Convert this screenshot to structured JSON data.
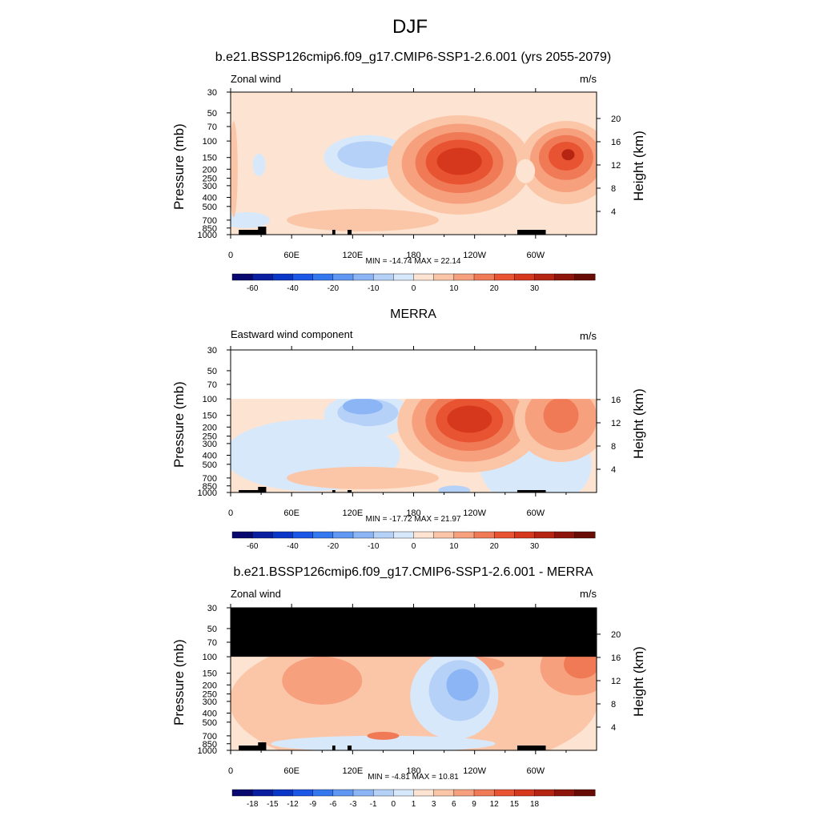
{
  "page": {
    "title": "DJF"
  },
  "panels": [
    {
      "id": "model",
      "title": "b.e21.BSSP126cmip6.f09_g17.CMIP6-SSP1-2.6.001 (yrs 2055-2079)",
      "left_label": "Zonal wind",
      "right_label": "m/s",
      "stats": "MIN = -14.74  MAX =  22.14",
      "colorbar_labels": [
        "-60",
        "-40",
        "-20",
        "-10",
        "0",
        "10",
        "20",
        "30"
      ]
    },
    {
      "id": "obs",
      "title": "MERRA",
      "left_label": "Eastward wind component",
      "right_label": "m/s",
      "stats": "MIN = -17.72  MAX =  21.97",
      "colorbar_labels": [
        "-60",
        "-40",
        "-20",
        "-10",
        "0",
        "10",
        "20",
        "30"
      ]
    },
    {
      "id": "diff",
      "title": "b.e21.BSSP126cmip6.f09_g17.CMIP6-SSP1-2.6.001 - MERRA",
      "left_label": "Zonal wind",
      "right_label": "m/s",
      "stats": "MIN = -4.81  MAX = 10.81",
      "colorbar_labels": [
        "-18",
        "-15",
        "-12",
        "-9",
        "-6",
        "-3",
        "-1",
        "0",
        "1",
        "3",
        "6",
        "9",
        "12",
        "15",
        "18"
      ]
    }
  ],
  "axes": {
    "ylabel": "Pressure (mb)",
    "y2label": "Height (km)",
    "pressure_ticks": [
      "30",
      "50",
      "70",
      "100",
      "150",
      "200",
      "250",
      "300",
      "400",
      "500",
      "700",
      "850",
      "1000"
    ],
    "height_ticks_top": [
      "20",
      "16",
      "12",
      "8",
      "4"
    ],
    "height_ticks_mid": [
      "16",
      "12",
      "8",
      "4"
    ],
    "lon_ticks": [
      "0",
      "60E",
      "120E",
      "180",
      "120W",
      "60W"
    ]
  },
  "chart_data": [
    {
      "type": "heatmap",
      "title": "b.e21.BSSP126cmip6.f09_g17.CMIP6-SSP1-2.6.001 (yrs 2055-2079)",
      "xlabel": "",
      "ylabel": "Pressure (mb)",
      "x_range": [
        0,
        360
      ],
      "y_range_mb": [
        1000,
        30
      ],
      "min": -14.74,
      "max": 22.14,
      "features": [
        {
          "kind": "jet_max",
          "lon": 225,
          "pressure_mb": 170,
          "value": 20
        },
        {
          "kind": "jet_max",
          "lon": 330,
          "pressure_mb": 150,
          "value": 22
        },
        {
          "kind": "easterly_min",
          "lon": 135,
          "pressure_mb": 120,
          "value": -5
        }
      ]
    },
    {
      "type": "heatmap",
      "title": "MERRA",
      "xlabel": "",
      "ylabel": "Pressure (mb)",
      "x_range": [
        0,
        360
      ],
      "y_range_mb": [
        1000,
        100
      ],
      "min": -17.72,
      "max": 21.97,
      "features": [
        {
          "kind": "jet_max",
          "lon": 235,
          "pressure_mb": 170,
          "value": 21
        },
        {
          "kind": "jet_max",
          "lon": 325,
          "pressure_mb": 150,
          "value": 12
        },
        {
          "kind": "easterly_min",
          "lon": 130,
          "pressure_mb": 120,
          "value": -10
        }
      ]
    },
    {
      "type": "heatmap",
      "title": "b.e21.BSSP126cmip6.f09_g17.CMIP6-SSP1-2.6.001 - MERRA",
      "xlabel": "",
      "ylabel": "Pressure (mb)",
      "x_range": [
        0,
        360
      ],
      "y_range_mb": [
        1000,
        30
      ],
      "min": -4.81,
      "max": 10.81,
      "features": [
        {
          "kind": "negative_diff",
          "lon": 225,
          "pressure_mb": 220,
          "value": -4
        },
        {
          "kind": "positive_diff",
          "lon": 340,
          "pressure_mb": 130,
          "value": 9
        },
        {
          "kind": "positive_diff",
          "lon": 90,
          "pressure_mb": 150,
          "value": 6
        }
      ]
    }
  ],
  "colors": {
    "ramp": [
      "#08086e",
      "#0a1fa0",
      "#0b37c9",
      "#1c56e6",
      "#3478f0",
      "#5f97f2",
      "#8bb5f5",
      "#b5d1f8",
      "#d8e8fb",
      "#fde3d2",
      "#fbc6a8",
      "#f6a07e",
      "#f07a56",
      "#e85432",
      "#d5381c",
      "#b52512",
      "#8e150b",
      "#6a0c06"
    ],
    "mask": "#000000"
  }
}
